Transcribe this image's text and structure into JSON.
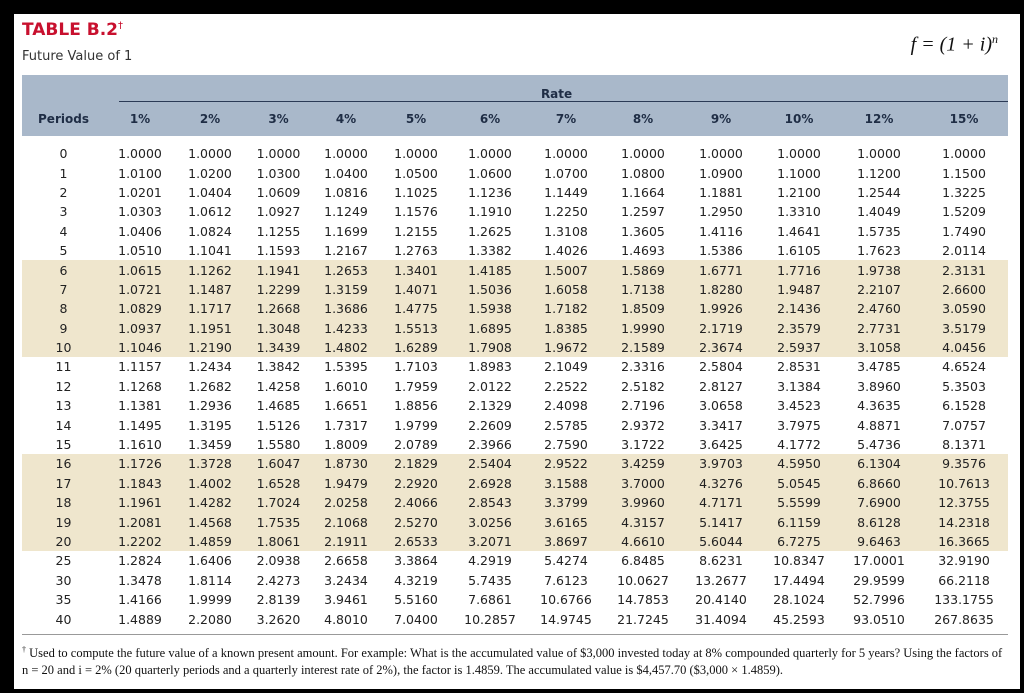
{
  "header": {
    "title": "TABLE B.2",
    "title_mark": "†",
    "subtitle": "Future Value of 1",
    "formula": "f = (1 + i)",
    "formula_exponent": "n"
  },
  "table": {
    "rate_label": "Rate",
    "periods_label": "Periods",
    "columns": [
      "1%",
      "2%",
      "3%",
      "4%",
      "5%",
      "6%",
      "7%",
      "8%",
      "9%",
      "10%",
      "12%",
      "15%"
    ],
    "rows": [
      {
        "period": "0",
        "values": [
          "1.0000",
          "1.0000",
          "1.0000",
          "1.0000",
          "1.0000",
          "1.0000",
          "1.0000",
          "1.0000",
          "1.0000",
          "1.0000",
          "1.0000",
          "1.0000"
        ]
      },
      {
        "period": "1",
        "values": [
          "1.0100",
          "1.0200",
          "1.0300",
          "1.0400",
          "1.0500",
          "1.0600",
          "1.0700",
          "1.0800",
          "1.0900",
          "1.1000",
          "1.1200",
          "1.1500"
        ]
      },
      {
        "period": "2",
        "values": [
          "1.0201",
          "1.0404",
          "1.0609",
          "1.0816",
          "1.1025",
          "1.1236",
          "1.1449",
          "1.1664",
          "1.1881",
          "1.2100",
          "1.2544",
          "1.3225"
        ]
      },
      {
        "period": "3",
        "values": [
          "1.0303",
          "1.0612",
          "1.0927",
          "1.1249",
          "1.1576",
          "1.1910",
          "1.2250",
          "1.2597",
          "1.2950",
          "1.3310",
          "1.4049",
          "1.5209"
        ]
      },
      {
        "period": "4",
        "values": [
          "1.0406",
          "1.0824",
          "1.1255",
          "1.1699",
          "1.2155",
          "1.2625",
          "1.3108",
          "1.3605",
          "1.4116",
          "1.4641",
          "1.5735",
          "1.7490"
        ]
      },
      {
        "period": "5",
        "values": [
          "1.0510",
          "1.1041",
          "1.1593",
          "1.2167",
          "1.2763",
          "1.3382",
          "1.4026",
          "1.4693",
          "1.5386",
          "1.6105",
          "1.7623",
          "2.0114"
        ]
      },
      {
        "period": "6",
        "values": [
          "1.0615",
          "1.1262",
          "1.1941",
          "1.2653",
          "1.3401",
          "1.4185",
          "1.5007",
          "1.5869",
          "1.6771",
          "1.7716",
          "1.9738",
          "2.3131"
        ]
      },
      {
        "period": "7",
        "values": [
          "1.0721",
          "1.1487",
          "1.2299",
          "1.3159",
          "1.4071",
          "1.5036",
          "1.6058",
          "1.7138",
          "1.8280",
          "1.9487",
          "2.2107",
          "2.6600"
        ]
      },
      {
        "period": "8",
        "values": [
          "1.0829",
          "1.1717",
          "1.2668",
          "1.3686",
          "1.4775",
          "1.5938",
          "1.7182",
          "1.8509",
          "1.9926",
          "2.1436",
          "2.4760",
          "3.0590"
        ]
      },
      {
        "period": "9",
        "values": [
          "1.0937",
          "1.1951",
          "1.3048",
          "1.4233",
          "1.5513",
          "1.6895",
          "1.8385",
          "1.9990",
          "2.1719",
          "2.3579",
          "2.7731",
          "3.5179"
        ]
      },
      {
        "period": "10",
        "values": [
          "1.1046",
          "1.2190",
          "1.3439",
          "1.4802",
          "1.6289",
          "1.7908",
          "1.9672",
          "2.1589",
          "2.3674",
          "2.5937",
          "3.1058",
          "4.0456"
        ]
      },
      {
        "period": "11",
        "values": [
          "1.1157",
          "1.2434",
          "1.3842",
          "1.5395",
          "1.7103",
          "1.8983",
          "2.1049",
          "2.3316",
          "2.5804",
          "2.8531",
          "3.4785",
          "4.6524"
        ]
      },
      {
        "period": "12",
        "values": [
          "1.1268",
          "1.2682",
          "1.4258",
          "1.6010",
          "1.7959",
          "2.0122",
          "2.2522",
          "2.5182",
          "2.8127",
          "3.1384",
          "3.8960",
          "5.3503"
        ]
      },
      {
        "period": "13",
        "values": [
          "1.1381",
          "1.2936",
          "1.4685",
          "1.6651",
          "1.8856",
          "2.1329",
          "2.4098",
          "2.7196",
          "3.0658",
          "3.4523",
          "4.3635",
          "6.1528"
        ]
      },
      {
        "period": "14",
        "values": [
          "1.1495",
          "1.3195",
          "1.5126",
          "1.7317",
          "1.9799",
          "2.2609",
          "2.5785",
          "2.9372",
          "3.3417",
          "3.7975",
          "4.8871",
          "7.0757"
        ]
      },
      {
        "period": "15",
        "values": [
          "1.1610",
          "1.3459",
          "1.5580",
          "1.8009",
          "2.0789",
          "2.3966",
          "2.7590",
          "3.1722",
          "3.6425",
          "4.1772",
          "5.4736",
          "8.1371"
        ]
      },
      {
        "period": "16",
        "values": [
          "1.1726",
          "1.3728",
          "1.6047",
          "1.8730",
          "2.1829",
          "2.5404",
          "2.9522",
          "3.4259",
          "3.9703",
          "4.5950",
          "6.1304",
          "9.3576"
        ]
      },
      {
        "period": "17",
        "values": [
          "1.1843",
          "1.4002",
          "1.6528",
          "1.9479",
          "2.2920",
          "2.6928",
          "3.1588",
          "3.7000",
          "4.3276",
          "5.0545",
          "6.8660",
          "10.7613"
        ]
      },
      {
        "period": "18",
        "values": [
          "1.1961",
          "1.4282",
          "1.7024",
          "2.0258",
          "2.4066",
          "2.8543",
          "3.3799",
          "3.9960",
          "4.7171",
          "5.5599",
          "7.6900",
          "12.3755"
        ]
      },
      {
        "period": "19",
        "values": [
          "1.2081",
          "1.4568",
          "1.7535",
          "2.1068",
          "2.5270",
          "3.0256",
          "3.6165",
          "4.3157",
          "5.1417",
          "6.1159",
          "8.6128",
          "14.2318"
        ]
      },
      {
        "period": "20",
        "values": [
          "1.2202",
          "1.4859",
          "1.8061",
          "2.1911",
          "2.6533",
          "3.2071",
          "3.8697",
          "4.6610",
          "5.6044",
          "6.7275",
          "9.6463",
          "16.3665"
        ]
      },
      {
        "period": "25",
        "values": [
          "1.2824",
          "1.6406",
          "2.0938",
          "2.6658",
          "3.3864",
          "4.2919",
          "5.4274",
          "6.8485",
          "8.6231",
          "10.8347",
          "17.0001",
          "32.9190"
        ]
      },
      {
        "period": "30",
        "values": [
          "1.3478",
          "1.8114",
          "2.4273",
          "3.2434",
          "4.3219",
          "5.7435",
          "7.6123",
          "10.0627",
          "13.2677",
          "17.4494",
          "29.9599",
          "66.2118"
        ]
      },
      {
        "period": "35",
        "values": [
          "1.4166",
          "1.9999",
          "2.8139",
          "3.9461",
          "5.5160",
          "7.6861",
          "10.6766",
          "14.7853",
          "20.4140",
          "28.1024",
          "52.7996",
          "133.1755"
        ]
      },
      {
        "period": "40",
        "values": [
          "1.4889",
          "2.2080",
          "3.2620",
          "4.8010",
          "7.0400",
          "10.2857",
          "14.9745",
          "21.7245",
          "31.4094",
          "45.2593",
          "93.0510",
          "267.8635"
        ]
      }
    ]
  },
  "footnote": {
    "mark": "†",
    "text": "Used to compute the future value of a known present amount. For example: What is the accumulated value of $3,000 invested today at 8% compounded quarterly for 5 years? Using the factors of n = 20 and i = 2% (20 quarterly periods and a quarterly interest rate of 2%), the factor is 1.4859. The accumulated value is $4,457.70 ($3,000 × 1.4859)."
  }
}
